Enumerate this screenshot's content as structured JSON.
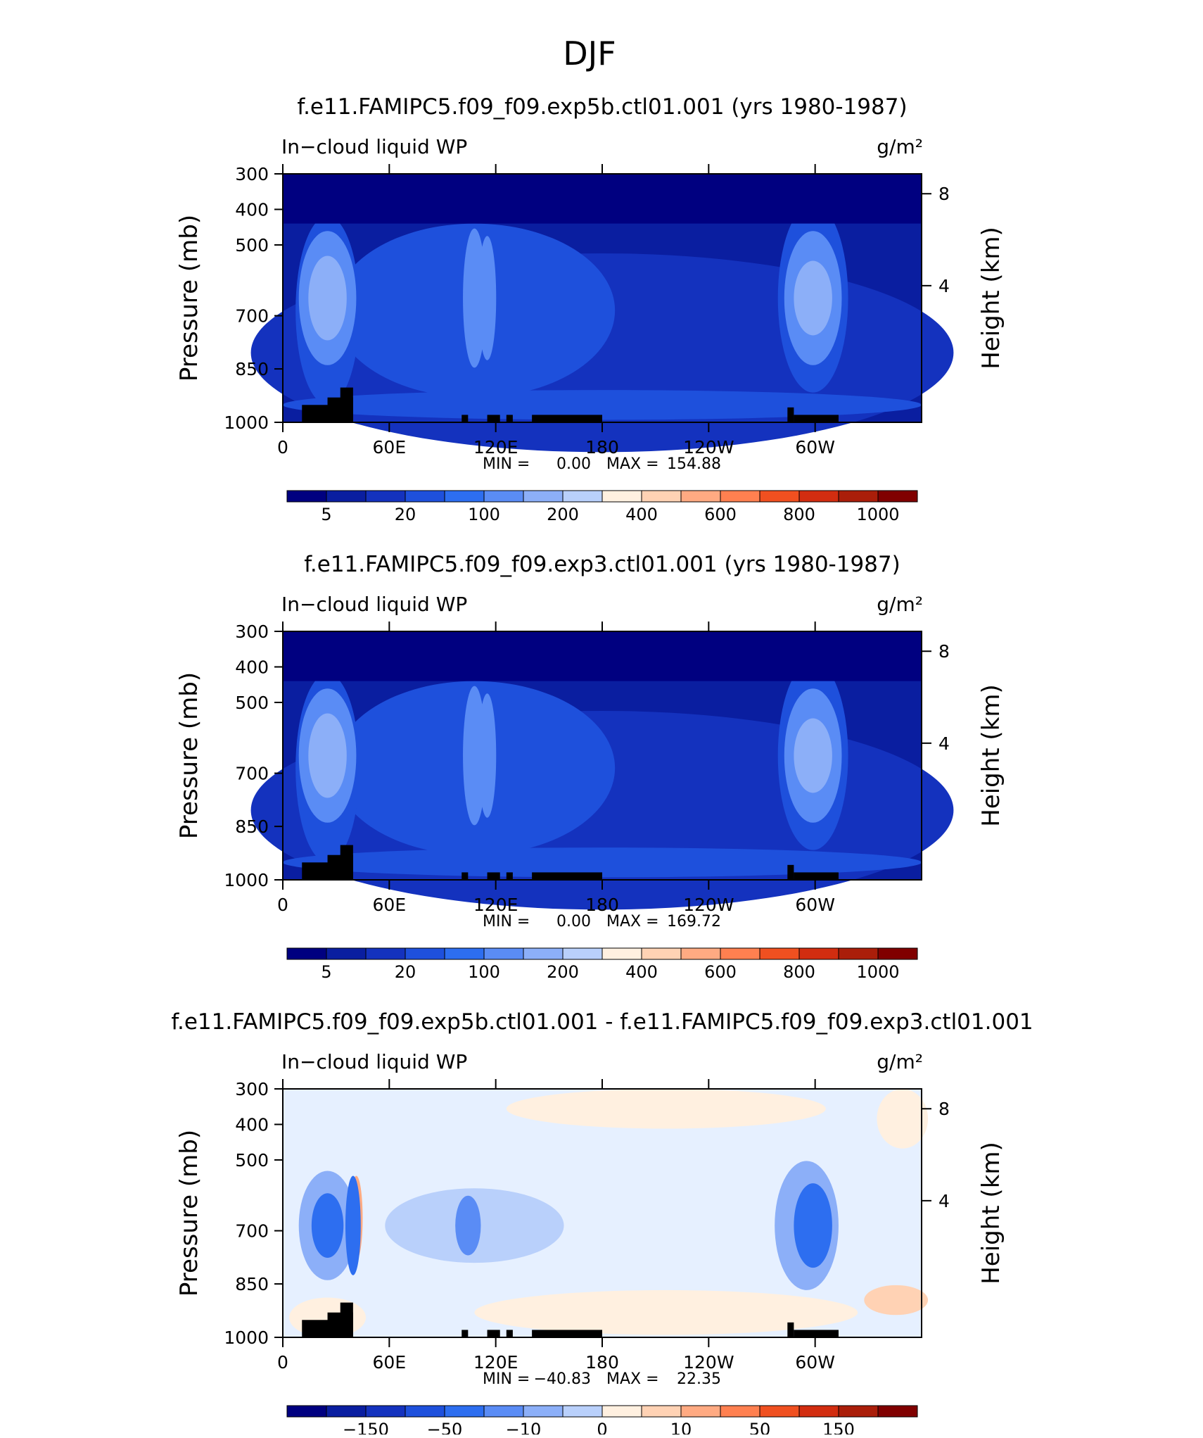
{
  "page_title": "DJF",
  "colors": {
    "seq": [
      "#000080",
      "#0a1ea0",
      "#1432be",
      "#1e50dc",
      "#2d6ef0",
      "#5a8cf5",
      "#8caff8",
      "#b9d0fb",
      "#e6f0ff",
      "#fff0e0",
      "#ffd2b4",
      "#ffaa82",
      "#ff8050",
      "#f05020",
      "#d22d10",
      "#aa1e0a",
      "#800000"
    ],
    "land": "#000000"
  },
  "chart_data": [
    {
      "type": "heatmap",
      "title": "f.e11.FAMIPC5.f09_f09.exp5b.ctl01.001 (yrs 1980-1987)",
      "left_label": "In−cloud liquid WP",
      "units": "g/m²",
      "ylabel": "Pressure (mb)",
      "ylabel_right": "Height (km)",
      "x_ticks": [
        "0",
        "60E",
        "120E",
        "180",
        "120W",
        "60W"
      ],
      "y_ticks": [
        "300",
        "400",
        "500",
        "700",
        "850",
        "1000"
      ],
      "y_ticks_right": [
        "8",
        "4"
      ],
      "min_label": "MIN =",
      "min_value": "0.00",
      "max_label": "MAX =",
      "max_value": "154.88",
      "colorbar_labels": [
        "5",
        "20",
        "100",
        "200",
        "400",
        "600",
        "800",
        "1000"
      ],
      "colorbar_label_positions": [
        1,
        3,
        5,
        7,
        9,
        11,
        13,
        15
      ],
      "colorbar_bins": 16,
      "colorbar_start_index": 0
    },
    {
      "type": "heatmap",
      "title": "f.e11.FAMIPC5.f09_f09.exp3.ctl01.001 (yrs 1980-1987)",
      "left_label": "In−cloud liquid WP",
      "units": "g/m²",
      "ylabel": "Pressure (mb)",
      "ylabel_right": "Height (km)",
      "x_ticks": [
        "0",
        "60E",
        "120E",
        "180",
        "120W",
        "60W"
      ],
      "y_ticks": [
        "300",
        "400",
        "500",
        "700",
        "850",
        "1000"
      ],
      "y_ticks_right": [
        "8",
        "4"
      ],
      "min_label": "MIN =",
      "min_value": "0.00",
      "max_label": "MAX =",
      "max_value": "169.72",
      "colorbar_labels": [
        "5",
        "20",
        "100",
        "200",
        "400",
        "600",
        "800",
        "1000"
      ],
      "colorbar_label_positions": [
        1,
        3,
        5,
        7,
        9,
        11,
        13,
        15
      ],
      "colorbar_bins": 16,
      "colorbar_start_index": 0
    },
    {
      "type": "heatmap",
      "title": "f.e11.FAMIPC5.f09_f09.exp5b.ctl01.001 - f.e11.FAMIPC5.f09_f09.exp3.ctl01.001",
      "left_label": "In−cloud liquid WP",
      "units": "g/m²",
      "ylabel": "Pressure (mb)",
      "ylabel_right": "Height (km)",
      "x_ticks": [
        "0",
        "60E",
        "120E",
        "180",
        "120W",
        "60W"
      ],
      "y_ticks": [
        "300",
        "400",
        "500",
        "700",
        "850",
        "1000"
      ],
      "y_ticks_right": [
        "8",
        "4"
      ],
      "min_label": "MIN =",
      "min_value": "−40.83",
      "max_label": "MAX =",
      "max_value": "22.35",
      "colorbar_labels": [
        "−150",
        "−50",
        "−10",
        "0",
        "10",
        "50",
        "150"
      ],
      "colorbar_label_positions": [
        2,
        4,
        6,
        8,
        10,
        12,
        14
      ],
      "colorbar_bins": 16,
      "colorbar_start_index": 0
    }
  ]
}
